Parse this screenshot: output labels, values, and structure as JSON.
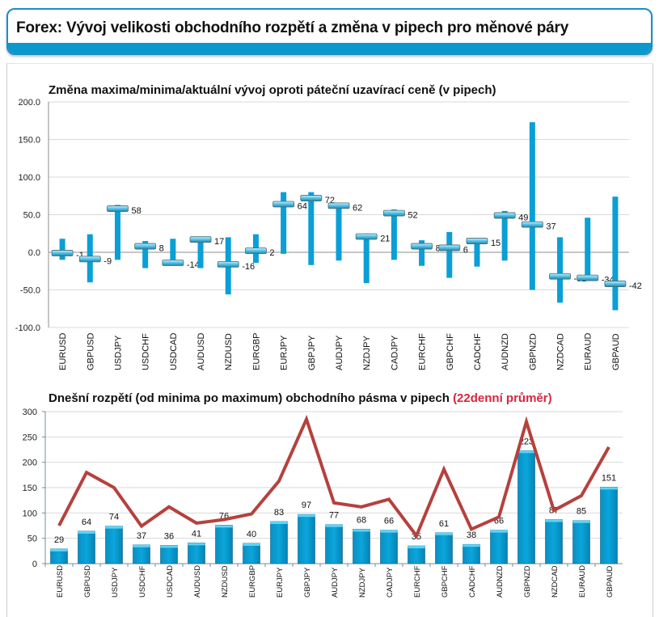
{
  "header": {
    "title": "Forex: Vývoj velikosti obchodního rozpětí a změna v pipech pro měnové páry"
  },
  "colors": {
    "accent": "#0b98cd",
    "bar": "#0a9fd6",
    "line": "#b5413d",
    "title_highlight": "#d7263d"
  },
  "chart_data": [
    {
      "type": "bar",
      "subtype": "high-low-current",
      "title": "Změna maxima/minima/aktuální vývoj oproti páteční uzavírací ceně (v pipech)",
      "xlabel": "",
      "ylabel": "",
      "ylim": [
        -100,
        200
      ],
      "yticks": [
        "200.0",
        "150.0",
        "100.0",
        "50.0",
        "0.0",
        "-50.0",
        "-100.0"
      ],
      "ytick_values": [
        200,
        150,
        100,
        50,
        0,
        -50,
        -100
      ],
      "grid": true,
      "categories": [
        "EURUSD",
        "GBPUSD",
        "USDJPY",
        "USDCHF",
        "USDCAD",
        "AUDUSD",
        "NZDUSD",
        "EURGBP",
        "EURJPY",
        "GBPJPY",
        "AUDJPY",
        "NZDJPY",
        "CADJPY",
        "EURCHF",
        "GBPCHF",
        "CADCHF",
        "AUDNZD",
        "GBPNZD",
        "NZDCAD",
        "EURAUD",
        "GBPAUD"
      ],
      "series": [
        {
          "name": "max",
          "values": [
            18,
            24,
            63,
            15,
            18,
            19,
            20,
            24,
            80,
            80,
            63,
            25,
            57,
            16,
            27,
            19,
            55,
            173,
            20,
            46,
            74
          ]
        },
        {
          "name": "min",
          "values": [
            -10,
            -40,
            -10,
            -21,
            -16,
            -21,
            -56,
            -14,
            -2,
            -17,
            -11,
            -41,
            -10,
            -18,
            -34,
            -19,
            -11,
            -50,
            -67,
            -37,
            -77
          ]
        },
        {
          "name": "current",
          "values": [
            -1,
            -9,
            58,
            8,
            -14,
            17,
            -16,
            2,
            64,
            72,
            62,
            21,
            52,
            8,
            6,
            15,
            49,
            37,
            -32,
            -34,
            -42
          ]
        }
      ],
      "data_labels": [
        "-1",
        "-9",
        "58",
        "8",
        "-14",
        "17",
        "-16",
        "2",
        "64",
        "72",
        "62",
        "21",
        "52",
        "8",
        "6",
        "15",
        "49",
        "37",
        "-32",
        "-34",
        "-42"
      ]
    },
    {
      "type": "bar",
      "subtype": "bar-with-line",
      "title": "Dnešní rozpětí (od minima po maximum) obchodního pásma v pipech",
      "title_highlight": "(22denní průměr)",
      "xlabel": "",
      "ylabel": "",
      "ylim": [
        0,
        300
      ],
      "yticks": [
        "300",
        "250",
        "200",
        "150",
        "100",
        "50",
        "0"
      ],
      "ytick_values": [
        300,
        250,
        200,
        150,
        100,
        50,
        0
      ],
      "grid": true,
      "categories": [
        "EURUSD",
        "GBPUSD",
        "USDJPY",
        "USDCHF",
        "USDCAD",
        "AUDUSD",
        "NZDUSD",
        "EURGBP",
        "EURJPY",
        "GBPJPY",
        "AUDJPY",
        "NZDJPY",
        "CADJPY",
        "EURCHF",
        "GBPCHF",
        "CADCHF",
        "AUDNZD",
        "GBPNZD",
        "NZDCAD",
        "EURAUD",
        "GBPAUD"
      ],
      "series": [
        {
          "name": "Dnešní rozpětí",
          "type": "bar",
          "values": [
            29,
            64,
            74,
            37,
            36,
            41,
            76,
            40,
            83,
            97,
            77,
            68,
            66,
            35,
            61,
            38,
            66,
            223,
            87,
            85,
            151
          ]
        },
        {
          "name": "22denní průměr",
          "type": "line",
          "values": [
            75,
            180,
            150,
            74,
            112,
            80,
            87,
            98,
            163,
            285,
            120,
            112,
            127,
            55,
            186,
            68,
            92,
            280,
            105,
            134,
            230
          ]
        }
      ],
      "data_labels": [
        "29",
        "64",
        "74",
        "37",
        "36",
        "41",
        "76",
        "40",
        "83",
        "97",
        "77",
        "68",
        "66",
        "35",
        "61",
        "38",
        "66",
        "223",
        "87",
        "85",
        "151"
      ]
    }
  ]
}
